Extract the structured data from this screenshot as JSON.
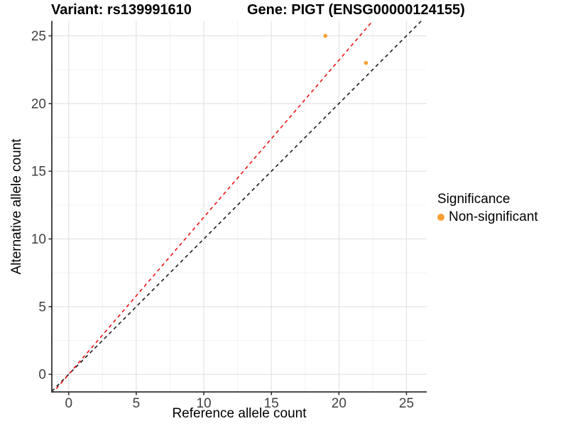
{
  "chart_data": {
    "type": "scatter",
    "title_left": "Variant: rs139991610",
    "title_right": "Gene: PIGT (ENSG00000124155)",
    "xlabel": "Reference allele count",
    "ylabel": "Alternative allele count",
    "x_ticks": [
      0,
      5,
      10,
      15,
      20,
      25
    ],
    "y_ticks": [
      0,
      5,
      10,
      15,
      20,
      25
    ],
    "xlim": [
      -1.25,
      26.5
    ],
    "ylim": [
      -1.3,
      26.1
    ],
    "grid": true,
    "minor_grid": true,
    "points": [
      {
        "x": 19,
        "y": 25,
        "series": "Non-significant"
      },
      {
        "x": 22,
        "y": 23,
        "series": "Non-significant"
      }
    ],
    "lines": [
      {
        "name": "identity-line",
        "slope": 1.0,
        "intercept": 0,
        "color": "#1a1a1a",
        "dash": "5,4.5"
      },
      {
        "name": "ratio-line",
        "slope": 1.16,
        "intercept": 0,
        "color": "#ee1111",
        "dash": "5,4.5"
      }
    ],
    "legend": {
      "title": "Significance",
      "position": "right",
      "items": [
        {
          "label": "Non-significant",
          "color": "#fa9f35"
        }
      ]
    }
  },
  "style": {
    "background": "#ffffff",
    "point_color": "#fa9f35",
    "major_grid_color": "#e3e3e3",
    "minor_grid_color": "#efefef",
    "axis_line_color": "#333333",
    "tick_label_color": "#404040",
    "title_color": "#000000"
  }
}
